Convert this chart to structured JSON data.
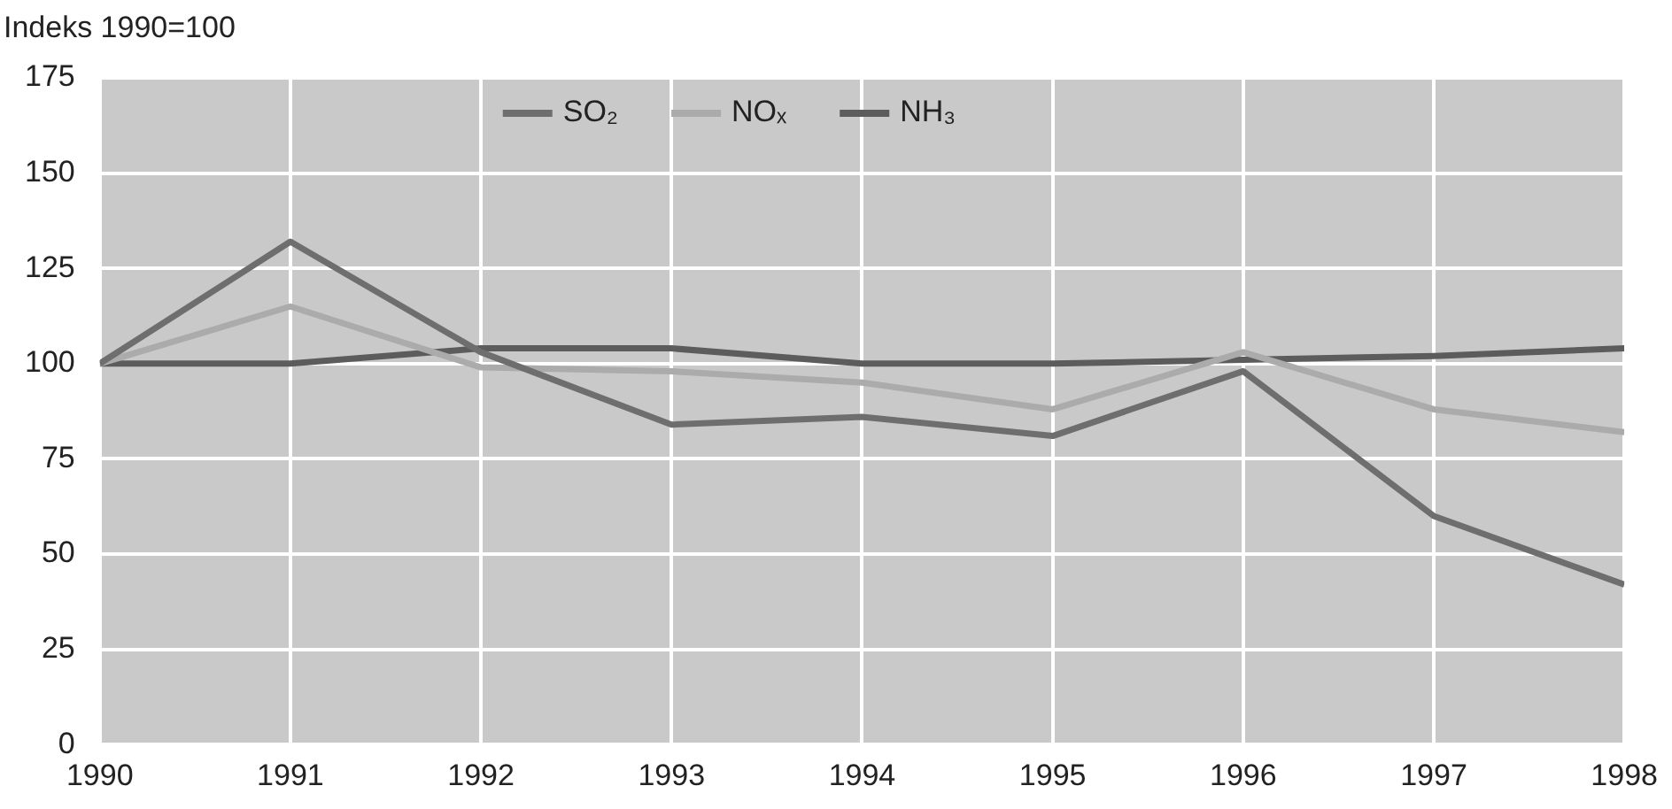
{
  "chart_data": {
    "type": "line",
    "ylabel": "Indeks 1990=100",
    "x": [
      1990,
      1991,
      1992,
      1993,
      1994,
      1995,
      1996,
      1997,
      1998
    ],
    "xlim": [
      1990,
      1998
    ],
    "xticks": [
      1990,
      1991,
      1992,
      1993,
      1994,
      1995,
      1996,
      1997,
      1998
    ],
    "ylim": [
      0,
      175
    ],
    "yticks": [
      0,
      25,
      50,
      75,
      100,
      125,
      150,
      175
    ],
    "grid": true,
    "legend": "top",
    "marker": "none",
    "line_style": "solid",
    "series": [
      {
        "name": "SO₂",
        "color": "#6e6e6e",
        "values": [
          100,
          132,
          103,
          84,
          86,
          81,
          98,
          60,
          42
        ]
      },
      {
        "name": "NOₓ",
        "color": "#ababab",
        "values": [
          100,
          115,
          99,
          98,
          95,
          88,
          103,
          88,
          82
        ]
      },
      {
        "name": "NH₃",
        "color": "#5c5c5c",
        "values": [
          100,
          100,
          104,
          104,
          100,
          100,
          101,
          102,
          104
        ]
      }
    ]
  }
}
